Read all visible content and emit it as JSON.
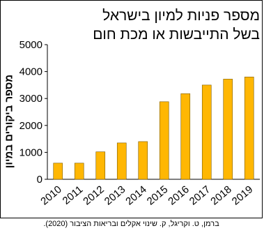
{
  "chart_data": {
    "type": "bar",
    "title_lines": [
      "מספר פניות למיון בישראל",
      "בשל התייבשות או מכת חום"
    ],
    "ylabel": "מספר ביקורים במיון",
    "xlabel": "",
    "categories": [
      "2010",
      "2011",
      "2012",
      "2013",
      "2014",
      "2015",
      "2016",
      "2017",
      "2018",
      "2019"
    ],
    "values": [
      600,
      600,
      1020,
      1350,
      1400,
      2880,
      3180,
      3500,
      3720,
      3800
    ],
    "ylim": [
      0,
      5000
    ],
    "yticks": [
      "0",
      "1000",
      "2000",
      "3000",
      "4000",
      "5000"
    ],
    "grid": false,
    "bar_color": "#FFB703",
    "bar_edge_color": "#7A5A00"
  },
  "caption": "ברמן, ט. וקריגל, ק. שינוי אקלים ובריאות הציבור (2020)."
}
